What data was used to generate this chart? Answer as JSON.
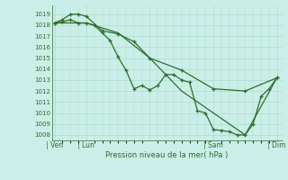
{
  "xlabel": "Pression niveau de la mer( hPa )",
  "bg_color": "#cceee8",
  "grid_color": "#aaddcc",
  "line_color": "#2d6e2d",
  "ylim": [
    1007.5,
    1019.8
  ],
  "yticks": [
    1008,
    1009,
    1010,
    1011,
    1012,
    1013,
    1014,
    1015,
    1016,
    1017,
    1018,
    1019
  ],
  "xlim": [
    -2,
    172
  ],
  "xtick_positions": [
    0,
    24,
    72,
    120,
    168
  ],
  "xtick_labels": [
    "| Ven",
    "| Lun",
    "",
    "| Sam",
    "| Dim"
  ],
  "series1_x": [
    0,
    6,
    12,
    18,
    24,
    36,
    48,
    60,
    72,
    96,
    120,
    144,
    168
  ],
  "series1_y": [
    1018.2,
    1018.5,
    1019.0,
    1019.0,
    1018.8,
    1017.5,
    1017.2,
    1016.5,
    1015.0,
    1013.9,
    1012.2,
    1012.0,
    1013.2
  ],
  "series2_x": [
    0,
    6,
    12,
    18,
    24,
    30,
    36,
    42,
    48,
    54,
    60,
    66,
    72,
    78,
    84,
    90,
    96,
    102,
    108,
    114,
    120,
    126,
    132,
    138,
    144,
    150,
    156,
    162,
    168
  ],
  "series2_y": [
    1018.2,
    1018.3,
    1018.5,
    1018.2,
    1018.2,
    1018.0,
    1017.3,
    1016.6,
    1015.1,
    1013.9,
    1012.2,
    1012.5,
    1012.1,
    1012.5,
    1013.5,
    1013.5,
    1013.0,
    1012.8,
    1010.2,
    1010.0,
    1008.5,
    1008.4,
    1008.3,
    1008.0,
    1008.0,
    1009.0,
    1011.5,
    1012.2,
    1013.2
  ],
  "series3_x": [
    0,
    24,
    48,
    72,
    96,
    120,
    144,
    168
  ],
  "series3_y": [
    1018.2,
    1018.2,
    1017.3,
    1015.0,
    1012.0,
    1010.0,
    1008.0,
    1013.2
  ]
}
